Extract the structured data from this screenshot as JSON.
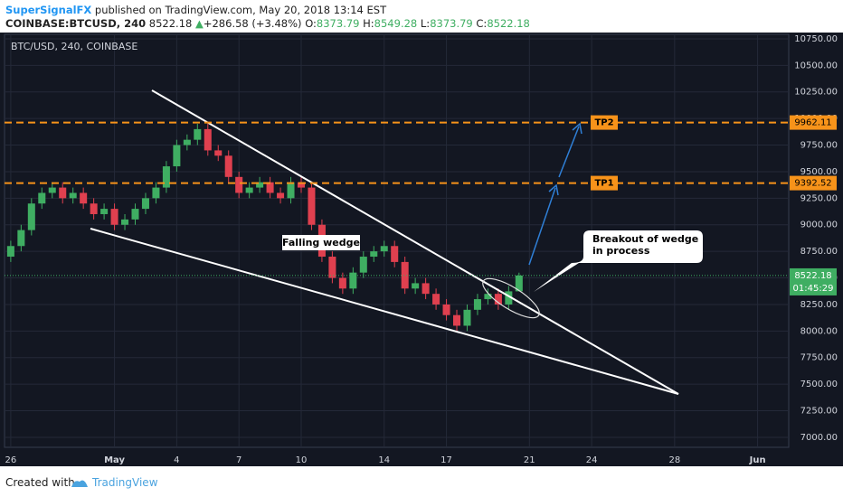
{
  "header": {
    "author": "SuperSignalFX",
    "published": "published on TradingView.com, May 20, 2018 13:14 EST",
    "symbol": "COINBASE:BTCUSD, 240",
    "change": "+286.58 (+3.48%)",
    "arrow": "▲",
    "o_label": "O:",
    "h_label": "H:",
    "l_label": "L:",
    "c_label": "C:"
  },
  "chart_data": {
    "type": "candlestick",
    "title": "BTC/USD, 240, COINBASE",
    "x": [
      0,
      0.5,
      1,
      1.5,
      2,
      2.5,
      3,
      3.5,
      4,
      4.5,
      5,
      5.5,
      6,
      6.5,
      7,
      7.5,
      8,
      8.5,
      9,
      9.5,
      10,
      10.5,
      11,
      11.5,
      12,
      12.5,
      13,
      13.5,
      14,
      14.5,
      15,
      15.5,
      16,
      16.5,
      17,
      17.5,
      18,
      18.5,
      19,
      19.5,
      20,
      20.5,
      21,
      21.5,
      22,
      22.5,
      23,
      23.5,
      24,
      24.5
    ],
    "open": [
      8700,
      8800,
      8950,
      9200,
      9300,
      9350,
      9250,
      9300,
      9200,
      9100,
      9150,
      9000,
      9050,
      9150,
      9250,
      9350,
      9550,
      9750,
      9800,
      9900,
      9700,
      9650,
      9450,
      9300,
      9350,
      9400,
      9300,
      9250,
      9400,
      9350,
      9000,
      8700,
      8500,
      8400,
      8550,
      8700,
      8750,
      8800,
      8650,
      8400,
      8450,
      8350,
      8250,
      8150,
      8050,
      8200,
      8300,
      8350,
      8250,
      8373.79
    ],
    "high": [
      8850,
      9000,
      9250,
      9350,
      9400,
      9400,
      9350,
      9350,
      9250,
      9200,
      9200,
      9100,
      9200,
      9300,
      9400,
      9600,
      9800,
      9850,
      9950,
      9950,
      9750,
      9700,
      9500,
      9400,
      9450,
      9450,
      9350,
      9450,
      9450,
      9400,
      9050,
      8750,
      8550,
      8600,
      8750,
      8800,
      8850,
      8850,
      8700,
      8500,
      8500,
      8400,
      8300,
      8200,
      8250,
      8350,
      8400,
      8400,
      8423.79,
      8549.28
    ],
    "low": [
      8650,
      8750,
      8900,
      9150,
      9250,
      9200,
      9200,
      9150,
      9050,
      9050,
      8950,
      8950,
      9000,
      9100,
      9200,
      9300,
      9500,
      9700,
      9750,
      9650,
      9600,
      9400,
      9250,
      9250,
      9300,
      9250,
      9200,
      9200,
      9300,
      8950,
      8650,
      8450,
      8350,
      8350,
      8500,
      8650,
      8700,
      8600,
      8350,
      8350,
      8300,
      8200,
      8100,
      8000,
      8000,
      8150,
      8250,
      8200,
      8200,
      8373.79
    ],
    "close": [
      8800,
      8950,
      9200,
      9300,
      9350,
      9250,
      9300,
      9200,
      9100,
      9150,
      9000,
      9050,
      9150,
      9250,
      9350,
      9550,
      9750,
      9800,
      9900,
      9700,
      9650,
      9450,
      9300,
      9350,
      9400,
      9300,
      9250,
      9400,
      9350,
      9000,
      8700,
      8500,
      8400,
      8550,
      8700,
      8750,
      8800,
      8650,
      8400,
      8450,
      8350,
      8250,
      8150,
      8050,
      8200,
      8300,
      8350,
      8250,
      8373.79,
      8522.18
    ],
    "up_color": "#3fae62",
    "down_color": "#e0404f",
    "xlim": [
      -0.3,
      37.5
    ],
    "xticks": [
      {
        "value": 0,
        "label": "26"
      },
      {
        "value": 5,
        "label": "May"
      },
      {
        "value": 8,
        "label": "4"
      },
      {
        "value": 11,
        "label": "7"
      },
      {
        "value": 14,
        "label": "10"
      },
      {
        "value": 18,
        "label": "14"
      },
      {
        "value": 21,
        "label": "17"
      },
      {
        "value": 25,
        "label": "21"
      },
      {
        "value": 28,
        "label": "24"
      },
      {
        "value": 32,
        "label": "28"
      },
      {
        "value": 36,
        "label": "Jun"
      }
    ],
    "ylim": [
      6906,
      10792
    ],
    "yticks": [
      {
        "value": 7000,
        "label": "7000.00"
      },
      {
        "value": 7250,
        "label": "7250.00"
      },
      {
        "value": 7500,
        "label": "7500.00"
      },
      {
        "value": 7750,
        "label": "7750.00"
      },
      {
        "value": 8000,
        "label": "8000.00"
      },
      {
        "value": 8250,
        "label": "8250.00"
      },
      {
        "value": 8500,
        "label": "8500.00"
      },
      {
        "value": 8750,
        "label": "8750.00"
      },
      {
        "value": 9000,
        "label": "9000.00"
      },
      {
        "value": 9250,
        "label": "9250.00"
      },
      {
        "value": 9500,
        "label": "9500.00"
      },
      {
        "value": 9750,
        "label": "9750.00"
      },
      {
        "value": 10000,
        "label": "10000.00"
      },
      {
        "value": 10250,
        "label": "10250.00"
      },
      {
        "value": 10500,
        "label": "10500.00"
      },
      {
        "value": 10750,
        "label": "10750.00"
      }
    ],
    "grid": true,
    "levels": [
      {
        "name": "TP1",
        "value": 9392.52,
        "color": "#f7931a"
      },
      {
        "name": "TP2",
        "value": 9962.11,
        "color": "#f7931a"
      }
    ],
    "countdown": "01:45:29",
    "annotations": {
      "wedge": "Falling wedge",
      "breakout_1": "Breakout of wedge",
      "breakout_2": "in process"
    }
  },
  "footer": {
    "created": "Created with",
    "brand": "TradingView"
  }
}
